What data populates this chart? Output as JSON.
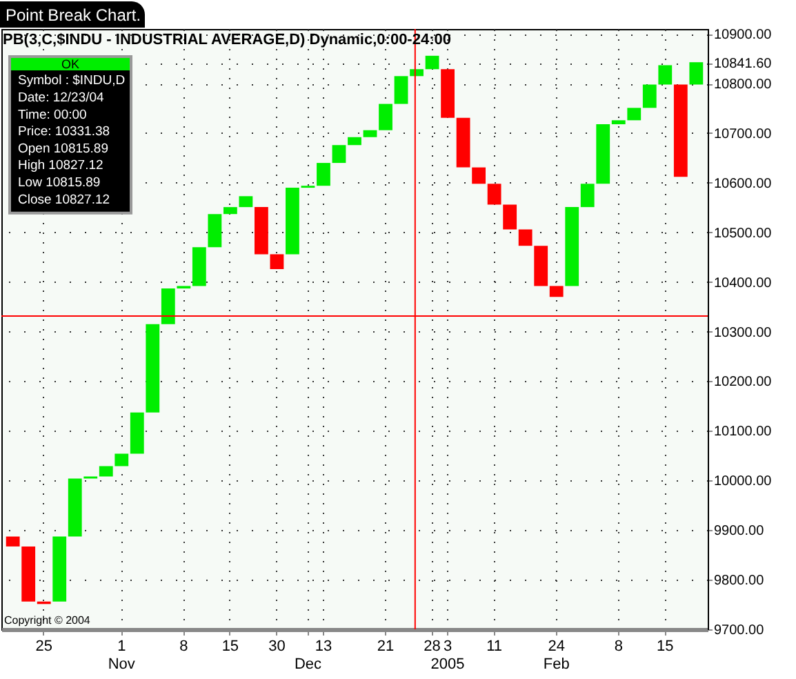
{
  "chart_data": {
    "type": "bar",
    "title": "Point Break Chart.",
    "subtitle": "PB(3,C,$INDU - INDUSTRIAL AVERAGE,D) Dynamic,0:00-24:00",
    "categories": [
      null,
      null,
      "25",
      null,
      null,
      null,
      null,
      "1\nNov",
      null,
      null,
      null,
      "8",
      null,
      null,
      "15",
      null,
      null,
      "30",
      null,
      "\nDec",
      "13",
      null,
      null,
      null,
      "21",
      null,
      null,
      "28",
      "3\n2005",
      null,
      null,
      "11",
      null,
      null,
      null,
      "24\nFeb",
      null,
      null,
      null,
      "8",
      null,
      null,
      "15",
      null,
      null
    ],
    "base": [
      9887,
      9867,
      9756,
      9756,
      9887,
      10004,
      10008,
      10029,
      10054,
      10137,
      10315,
      10387,
      10392,
      10470,
      10537,
      10551,
      10551,
      10456,
      10456,
      10590,
      10594,
      10640,
      10676,
      10692,
      10706,
      10759,
      10815,
      10829,
      10829,
      10731,
      10631,
      10598,
      10556,
      10506,
      10473,
      10392,
      10392,
      10551,
      10598,
      10718,
      10726,
      10751,
      10798,
      10798,
      10798
    ],
    "values": [
      -20,
      -111,
      -5,
      131,
      117,
      4,
      21,
      25,
      83,
      178,
      72,
      5,
      78,
      67,
      14,
      22,
      -95,
      -30,
      134,
      4,
      46,
      36,
      16,
      14,
      53,
      56,
      14,
      27,
      -98,
      -100,
      -33,
      -42,
      -50,
      -33,
      -81,
      -22,
      159,
      47,
      120,
      8,
      25,
      47,
      39,
      -186,
      45
    ],
    "colors": [
      "#ff0000",
      "#ff0000",
      "#ff0000",
      "#00ee00",
      "#00ee00",
      "#00ee00",
      "#00ee00",
      "#00ee00",
      "#00ee00",
      "#00ee00",
      "#00ee00",
      "#00ee00",
      "#00ee00",
      "#00ee00",
      "#00ee00",
      "#00ee00",
      "#ff0000",
      "#ff0000",
      "#00ee00",
      "#00ee00",
      "#00ee00",
      "#00ee00",
      "#00ee00",
      "#00ee00",
      "#00ee00",
      "#00ee00",
      "#00ee00",
      "#00ee00",
      "#ff0000",
      "#ff0000",
      "#ff0000",
      "#ff0000",
      "#ff0000",
      "#ff0000",
      "#ff0000",
      "#ff0000",
      "#00ee00",
      "#00ee00",
      "#00ee00",
      "#00ee00",
      "#00ee00",
      "#00ee00",
      "#00ee00",
      "#ff0000",
      "#00ee00"
    ],
    "ylim": [
      9700,
      10910
    ],
    "yticks": [
      {
        "value": 9700,
        "label": "9700.00"
      },
      {
        "value": 9800,
        "label": "9800.00"
      },
      {
        "value": 9900,
        "label": "9900.00"
      },
      {
        "value": 10000,
        "label": "10000.00"
      },
      {
        "value": 10100,
        "label": "10100.00"
      },
      {
        "value": 10200,
        "label": "10200.00"
      },
      {
        "value": 10300,
        "label": "10300.00"
      },
      {
        "value": 10400,
        "label": "10400.00"
      },
      {
        "value": 10500,
        "label": "10500.00"
      },
      {
        "value": 10600,
        "label": "10600.00"
      },
      {
        "value": 10700,
        "label": "10700.00"
      },
      {
        "value": 10800,
        "label": "10800.00"
      },
      {
        "value": 10841.6,
        "label": "10841.60"
      },
      {
        "value": 10900,
        "label": "10900.00"
      }
    ],
    "grid": true,
    "ref_lines": [
      {
        "axis": "y",
        "value": 10331.38,
        "color": "#ff0000"
      }
    ],
    "annotations": [
      "OK",
      "Symbol : $INDU,D",
      "Date: 12/23/04",
      "Time: 00:00",
      "Price: 10331.38",
      "Open 10815.89",
      "High 10827.12",
      "Low 10815.89",
      "Close 10827.12",
      "Copyright © 2004"
    ]
  }
}
